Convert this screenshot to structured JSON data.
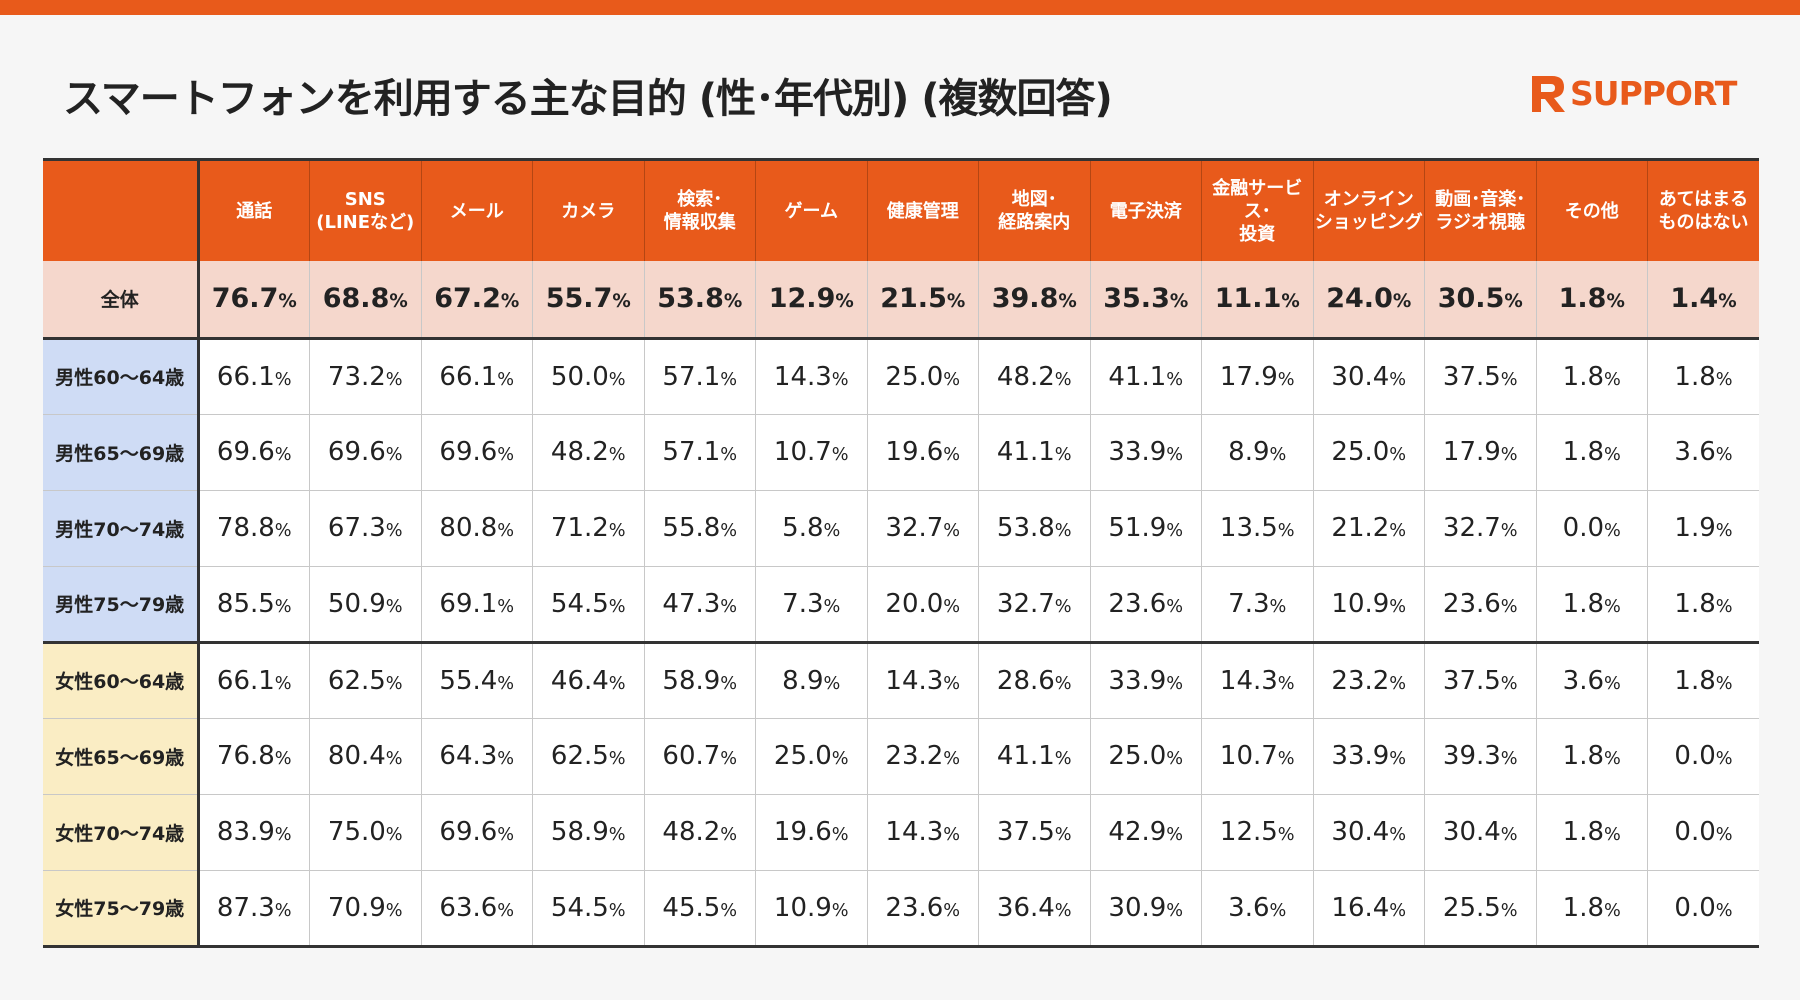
{
  "header": {
    "title": "スマートフォンを利用する主な目的 (性･年代別) (複数回答)",
    "logo_text": "SUPPORT"
  },
  "colors": {
    "accent": "#e85a1b",
    "total_row_bg": "#f5d7cc",
    "male_label_bg": "#cfdcf5",
    "female_label_bg": "#faedc4"
  },
  "chart_data": {
    "type": "table",
    "unit": "%",
    "columns": [
      [
        "通話"
      ],
      [
        "SNS",
        "(LINEなど)"
      ],
      [
        "メール"
      ],
      [
        "カメラ"
      ],
      [
        "検索･",
        "情報収集"
      ],
      [
        "ゲーム"
      ],
      [
        "健康管理"
      ],
      [
        "地図･",
        "経路案内"
      ],
      [
        "電子決済"
      ],
      [
        "金融サービス･",
        "投資"
      ],
      [
        "オンライン",
        "ショッピング"
      ],
      [
        "動画･音楽･",
        "ラジオ視聴"
      ],
      [
        "その他"
      ],
      [
        "あてはまる",
        "ものはない"
      ]
    ],
    "rows": [
      {
        "label": "全体",
        "group": "total",
        "values": [
          "76.7",
          "68.8",
          "67.2",
          "55.7",
          "53.8",
          "12.9",
          "21.5",
          "39.8",
          "35.3",
          "11.1",
          "24.0",
          "30.5",
          "1.8",
          "1.4"
        ]
      },
      {
        "label": "男性60～64歳",
        "group": "male",
        "values": [
          "66.1",
          "73.2",
          "66.1",
          "50.0",
          "57.1",
          "14.3",
          "25.0",
          "48.2",
          "41.1",
          "17.9",
          "30.4",
          "37.5",
          "1.8",
          "1.8"
        ]
      },
      {
        "label": "男性65～69歳",
        "group": "male",
        "values": [
          "69.6",
          "69.6",
          "69.6",
          "48.2",
          "57.1",
          "10.7",
          "19.6",
          "41.1",
          "33.9",
          "8.9",
          "25.0",
          "17.9",
          "1.8",
          "3.6"
        ]
      },
      {
        "label": "男性70～74歳",
        "group": "male",
        "values": [
          "78.8",
          "67.3",
          "80.8",
          "71.2",
          "55.8",
          "5.8",
          "32.7",
          "53.8",
          "51.9",
          "13.5",
          "21.2",
          "32.7",
          "0.0",
          "1.9"
        ]
      },
      {
        "label": "男性75～79歳",
        "group": "male",
        "values": [
          "85.5",
          "50.9",
          "69.1",
          "54.5",
          "47.3",
          "7.3",
          "20.0",
          "32.7",
          "23.6",
          "7.3",
          "10.9",
          "23.6",
          "1.8",
          "1.8"
        ]
      },
      {
        "label": "女性60～64歳",
        "group": "female",
        "values": [
          "66.1",
          "62.5",
          "55.4",
          "46.4",
          "58.9",
          "8.9",
          "14.3",
          "28.6",
          "33.9",
          "14.3",
          "23.2",
          "37.5",
          "3.6",
          "1.8"
        ]
      },
      {
        "label": "女性65～69歳",
        "group": "female",
        "values": [
          "76.8",
          "80.4",
          "64.3",
          "62.5",
          "60.7",
          "25.0",
          "23.2",
          "41.1",
          "25.0",
          "10.7",
          "33.9",
          "39.3",
          "1.8",
          "0.0"
        ]
      },
      {
        "label": "女性70～74歳",
        "group": "female",
        "values": [
          "83.9",
          "75.0",
          "69.6",
          "58.9",
          "48.2",
          "19.6",
          "14.3",
          "37.5",
          "42.9",
          "12.5",
          "30.4",
          "30.4",
          "1.8",
          "0.0"
        ]
      },
      {
        "label": "女性75～79歳",
        "group": "female",
        "values": [
          "87.3",
          "70.9",
          "63.6",
          "54.5",
          "45.5",
          "10.9",
          "23.6",
          "36.4",
          "30.9",
          "3.6",
          "16.4",
          "25.5",
          "1.8",
          "0.0"
        ]
      }
    ]
  }
}
